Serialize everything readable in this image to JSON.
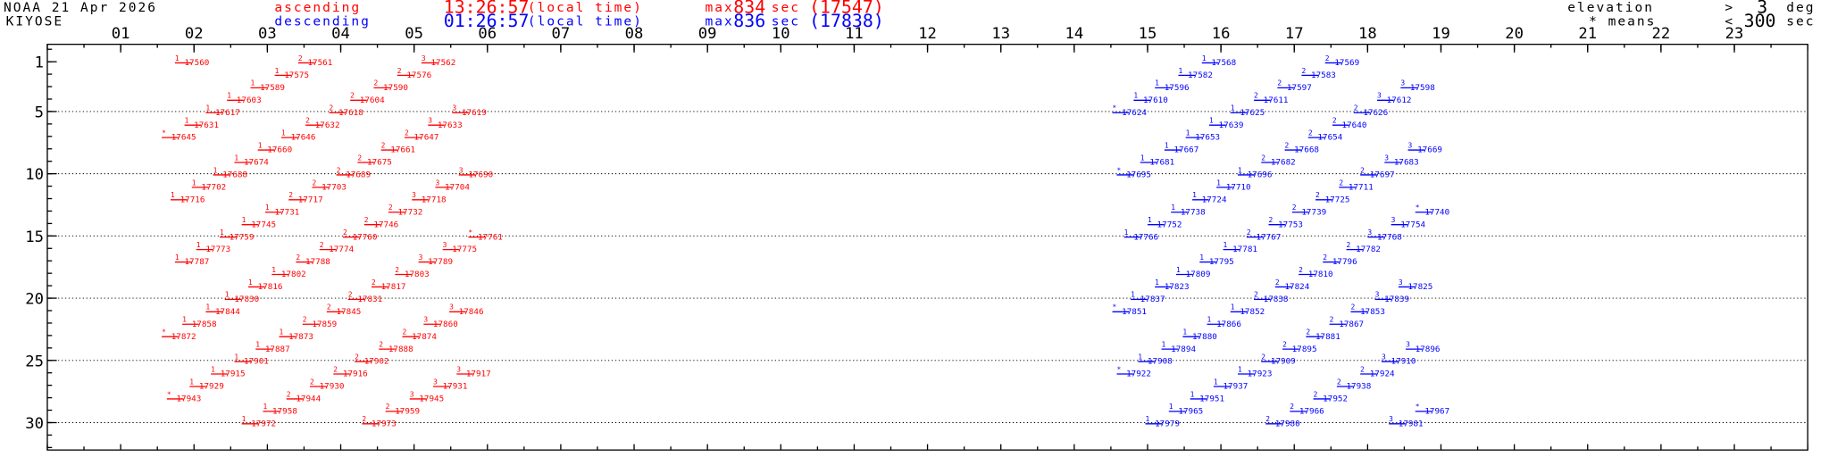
{
  "header": {
    "title": "NOAA 21 Apr 2026",
    "station": "KIYOSE",
    "ascending": {
      "label": "ascending",
      "time": "13:26:57",
      "note": "(local time)",
      "max_prefix": "max",
      "max_sec": 834,
      "max_unit": "sec",
      "max_orbit": "(17547)"
    },
    "descending": {
      "label": "descending",
      "time": "01:26:57",
      "note": "(local time)",
      "max_prefix": "max",
      "max_sec": 836,
      "max_unit": "sec",
      "max_orbit": "(17838)"
    },
    "elevation": {
      "label": "elevation",
      "op": ">",
      "value": 3,
      "unit": "deg"
    },
    "short": {
      "label": "* means",
      "op": "<",
      "value": 300,
      "unit": "sec"
    }
  },
  "chart_data": {
    "type": "pass-schedule",
    "xlim": [
      0,
      24
    ],
    "ylim": [
      -0.4,
      32.2
    ],
    "grid": true,
    "xticks": [
      {
        "value": 1,
        "label": "01"
      },
      {
        "value": 2,
        "label": "02"
      },
      {
        "value": 3,
        "label": "03"
      },
      {
        "value": 4,
        "label": "04"
      },
      {
        "value": 5,
        "label": "05"
      },
      {
        "value": 6,
        "label": "06"
      },
      {
        "value": 7,
        "label": "07"
      },
      {
        "value": 8,
        "label": "08"
      },
      {
        "value": 9,
        "label": "09"
      },
      10,
      11,
      12,
      13,
      14,
      15,
      16,
      17,
      18,
      19,
      20,
      21,
      22,
      23
    ],
    "yticks": [
      1,
      5,
      10,
      15,
      20,
      25,
      30
    ],
    "series": [
      {
        "name": "ascending",
        "color": "#ff0000",
        "days": [
          1,
          1,
          1,
          2,
          2,
          3,
          3,
          4,
          4,
          5,
          5,
          5,
          6,
          6,
          6,
          7,
          7,
          7,
          8,
          8,
          9,
          9,
          10,
          10,
          10,
          11,
          11,
          11,
          12,
          12,
          12,
          13,
          13,
          14,
          14,
          15,
          15,
          15,
          16,
          16,
          16,
          17,
          17,
          17,
          18,
          18,
          19,
          19,
          20,
          20,
          21,
          21,
          21,
          22,
          22,
          22,
          23,
          23,
          23,
          24,
          24,
          25,
          25,
          26,
          26,
          26,
          27,
          27,
          27,
          28,
          28,
          28,
          29,
          29,
          30,
          30
        ],
        "hours": [
          1.74,
          3.42,
          5.1,
          3.1,
          4.77,
          2.77,
          4.45,
          2.45,
          4.13,
          2.16,
          3.84,
          5.52,
          1.87,
          3.52,
          5.19,
          1.56,
          3.19,
          4.87,
          2.87,
          4.55,
          2.55,
          4.23,
          2.26,
          3.94,
          5.61,
          1.97,
          3.61,
          5.29,
          1.68,
          3.29,
          4.97,
          2.97,
          4.65,
          2.65,
          4.32,
          2.35,
          4.03,
          5.74,
          2.03,
          3.71,
          5.39,
          1.74,
          3.39,
          5.06,
          3.06,
          4.74,
          2.74,
          4.42,
          2.42,
          4.1,
          2.16,
          3.81,
          5.48,
          1.84,
          3.48,
          5.13,
          1.56,
          3.16,
          4.84,
          2.84,
          4.52,
          2.55,
          4.19,
          2.23,
          3.9,
          5.58,
          1.94,
          3.58,
          5.26,
          1.63,
          3.26,
          4.94,
          2.94,
          4.61,
          2.65,
          4.29
        ],
        "marks": [
          "1",
          "2",
          "3",
          "1",
          "2",
          "1",
          "2",
          "1",
          "2",
          "1",
          "2",
          "3",
          "1",
          "2",
          "3",
          "*",
          "1",
          "2",
          "1",
          "2",
          "1",
          "2",
          "1",
          "2",
          "3",
          "1",
          "2",
          "3",
          "1",
          "2",
          "3",
          "1",
          "2",
          "1",
          "2",
          "1",
          "2",
          "*",
          "1",
          "2",
          "3",
          "1",
          "2",
          "3",
          "1",
          "2",
          "1",
          "2",
          "1",
          "2",
          "1",
          "2",
          "3",
          "1",
          "2",
          "3",
          "*",
          "1",
          "2",
          "1",
          "2",
          "1",
          "2",
          "1",
          "2",
          "3",
          "1",
          "2",
          "3",
          "*",
          "2",
          "3",
          "1",
          "2",
          "1",
          "2"
        ],
        "orbits": [
          17560,
          17561,
          17562,
          17575,
          17576,
          17589,
          17590,
          17603,
          17604,
          17617,
          17618,
          17619,
          17631,
          17632,
          17633,
          17645,
          17646,
          17647,
          17660,
          17661,
          17674,
          17675,
          17688,
          17689,
          17690,
          17702,
          17703,
          17704,
          17716,
          17717,
          17718,
          17731,
          17732,
          17745,
          17746,
          17759,
          17760,
          17761,
          17773,
          17774,
          17775,
          17787,
          17788,
          17789,
          17802,
          17803,
          17816,
          17817,
          17830,
          17831,
          17844,
          17845,
          17846,
          17858,
          17859,
          17860,
          17872,
          17873,
          17874,
          17887,
          17888,
          17901,
          17902,
          17915,
          17916,
          17917,
          17929,
          17930,
          17931,
          17943,
          17944,
          17945,
          17958,
          17959,
          17972,
          17973
        ]
      },
      {
        "name": "descending",
        "color": "#0000ff",
        "days": [
          1,
          1,
          2,
          2,
          3,
          3,
          3,
          4,
          4,
          4,
          5,
          5,
          5,
          6,
          6,
          7,
          7,
          8,
          8,
          8,
          9,
          9,
          9,
          10,
          10,
          10,
          11,
          11,
          12,
          12,
          13,
          13,
          13,
          14,
          14,
          14,
          15,
          15,
          15,
          16,
          16,
          17,
          17,
          18,
          18,
          19,
          19,
          19,
          20,
          20,
          20,
          21,
          21,
          21,
          22,
          22,
          23,
          23,
          24,
          24,
          24,
          25,
          25,
          25,
          26,
          26,
          26,
          27,
          27,
          28,
          28,
          29,
          29,
          29,
          30,
          30,
          30
        ],
        "hours": [
          15.74,
          17.42,
          15.42,
          17.1,
          15.1,
          16.77,
          18.45,
          14.81,
          16.45,
          18.13,
          14.52,
          16.13,
          17.81,
          15.84,
          17.52,
          15.52,
          17.19,
          15.23,
          16.87,
          18.55,
          14.9,
          16.55,
          18.23,
          14.58,
          16.23,
          17.9,
          15.94,
          17.61,
          15.61,
          17.29,
          15.32,
          16.97,
          18.65,
          15.0,
          16.65,
          18.32,
          14.68,
          16.35,
          18.0,
          16.03,
          17.71,
          15.71,
          17.39,
          15.39,
          17.06,
          15.1,
          16.74,
          18.42,
          14.77,
          16.45,
          18.1,
          14.52,
          16.13,
          17.77,
          15.81,
          17.48,
          15.48,
          17.16,
          15.19,
          16.84,
          18.52,
          14.87,
          16.55,
          18.19,
          14.58,
          16.23,
          17.9,
          15.9,
          17.58,
          15.58,
          17.26,
          15.29,
          16.94,
          18.65,
          14.97,
          16.61,
          18.29
        ],
        "marks": [
          "1",
          "2",
          "1",
          "2",
          "1",
          "2",
          "3",
          "1",
          "2",
          "3",
          "*",
          "1",
          "2",
          "1",
          "2",
          "1",
          "2",
          "1",
          "2",
          "3",
          "1",
          "2",
          "3",
          "*",
          "1",
          "2",
          "1",
          "2",
          "1",
          "2",
          "1",
          "2",
          "*",
          "1",
          "2",
          "3",
          "1",
          "2",
          "3",
          "1",
          "2",
          "1",
          "2",
          "1",
          "2",
          "1",
          "2",
          "3",
          "1",
          "2",
          "3",
          "*",
          "1",
          "2",
          "1",
          "2",
          "1",
          "2",
          "1",
          "2",
          "3",
          "1",
          "2",
          "3",
          "*",
          "1",
          "2",
          "1",
          "2",
          "1",
          "2",
          "1",
          "2",
          "*",
          "1",
          "2",
          "3"
        ],
        "orbits": [
          17568,
          17569,
          17582,
          17583,
          17596,
          17597,
          17598,
          17610,
          17611,
          17612,
          17624,
          17625,
          17626,
          17639,
          17640,
          17653,
          17654,
          17667,
          17668,
          17669,
          17681,
          17682,
          17683,
          17695,
          17696,
          17697,
          17710,
          17711,
          17724,
          17725,
          17738,
          17739,
          17740,
          17752,
          17753,
          17754,
          17766,
          17767,
          17768,
          17781,
          17782,
          17795,
          17796,
          17809,
          17810,
          17823,
          17824,
          17825,
          17837,
          17838,
          17839,
          17851,
          17852,
          17853,
          17866,
          17867,
          17880,
          17881,
          17894,
          17895,
          17896,
          17908,
          17909,
          17910,
          17922,
          17923,
          17924,
          17937,
          17938,
          17951,
          17952,
          17965,
          17966,
          17967,
          17979,
          17980,
          17981
        ]
      }
    ]
  }
}
